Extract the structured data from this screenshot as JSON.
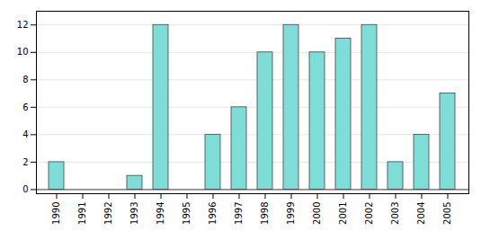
{
  "chart_data": {
    "type": "bar",
    "categories": [
      "1990",
      "1991",
      "1992",
      "1993",
      "1994",
      "1995",
      "1996",
      "1997",
      "1998",
      "1999",
      "2000",
      "2001",
      "2002",
      "2003",
      "2004",
      "2005"
    ],
    "values": [
      2,
      0,
      0,
      1,
      12,
      0,
      4,
      6,
      10,
      12,
      10,
      11,
      12,
      2,
      4,
      7
    ],
    "color": "#7fddd8",
    "ylim": [
      -0.3,
      13
    ],
    "yticks": [
      0,
      2,
      4,
      6,
      8,
      10,
      12
    ],
    "grid": true
  }
}
